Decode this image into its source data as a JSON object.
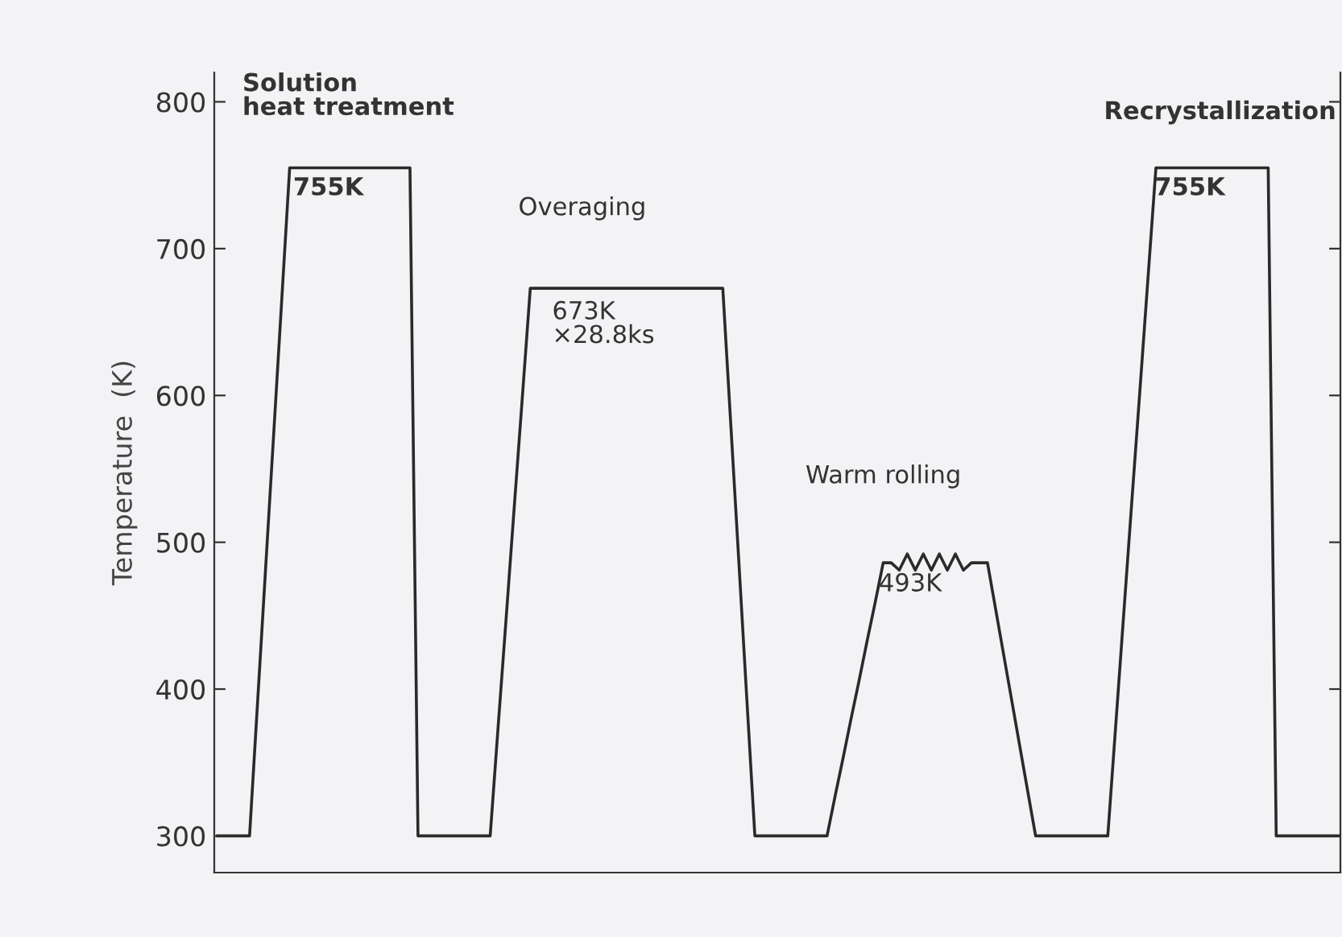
{
  "chart_data": {
    "type": "line",
    "ylabel": "Temperature  (K)",
    "categories": [
      null,
      null,
      null,
      null,
      null,
      null,
      null,
      null,
      null,
      null,
      null,
      null,
      null,
      null,
      null,
      null,
      null,
      null,
      null,
      null,
      null,
      null,
      null,
      null,
      null,
      null,
      null,
      null,
      null,
      null,
      null,
      null,
      null,
      null,
      null,
      null,
      null,
      null,
      null,
      null,
      null,
      null,
      null,
      null,
      null,
      null,
      null,
      null,
      null,
      null,
      null,
      null,
      null,
      null,
      null,
      null,
      null,
      null,
      null,
      null,
      null,
      null,
      null,
      null,
      null,
      null,
      null,
      null,
      null,
      null,
      null,
      null,
      null,
      null,
      null,
      null,
      null,
      null,
      null,
      null,
      null,
      null,
      null,
      null,
      null,
      null,
      null,
      null,
      null,
      null,
      null,
      null,
      null,
      null,
      null,
      null,
      null,
      null,
      null,
      null,
      null,
      null,
      null,
      null,
      null,
      null,
      null,
      null,
      null,
      null,
      null,
      null,
      null,
      null,
      null,
      null,
      null,
      null,
      null,
      null,
      null,
      null,
      null,
      null,
      null,
      null,
      null,
      null,
      null,
      null,
      null,
      null,
      null,
      null,
      null,
      null,
      null,
      null,
      null,
      null,
      null
    ],
    "series": [
      {
        "color": "#2a2a2a",
        "values": [
          300,
          300,
          300,
          300,
          300,
          391,
          482,
          573,
          664,
          755,
          755,
          755,
          755,
          755,
          755,
          755,
          755,
          755,
          755,
          755,
          755,
          755,
          755,
          755,
          755,
          300,
          300,
          300,
          300,
          300,
          300,
          300,
          300,
          300,
          300,
          375,
          449,
          524,
          598,
          673,
          673,
          673,
          673,
          673,
          673,
          673,
          673,
          673,
          673,
          673,
          673,
          673,
          673,
          673,
          673,
          673,
          673,
          673,
          673,
          673,
          673,
          673,
          673,
          673,
          580,
          487,
          393,
          300,
          300,
          300,
          300,
          300,
          300,
          300,
          300,
          300,
          300,
          327,
          353,
          380,
          406,
          433,
          459,
          486,
          486,
          481,
          492,
          481,
          492,
          481,
          492,
          481,
          492,
          481,
          486,
          486,
          486,
          455,
          424,
          393,
          362,
          331,
          300,
          300,
          300,
          300,
          300,
          300,
          300,
          300,
          300,
          300,
          376,
          452,
          528,
          603,
          679,
          755,
          755,
          755,
          755,
          755,
          755,
          755,
          755,
          755,
          755,
          755,
          755,
          755,
          755,
          755,
          300,
          300,
          300,
          300,
          300,
          300,
          300,
          300,
          300
        ]
      }
    ],
    "ylim": [
      275,
      820
    ],
    "yticks": [
      300,
      400,
      500,
      600,
      700,
      800
    ],
    "tick_labels": "y",
    "grid": false,
    "legend": false,
    "marker": "none",
    "line_style": "solid",
    "annotations": [
      "Solution\nheat treatment",
      "755K",
      "Overaging",
      "673K\n×28.8ks",
      "Warm rolling",
      "493K",
      "Recrystallization",
      "755K"
    ]
  }
}
